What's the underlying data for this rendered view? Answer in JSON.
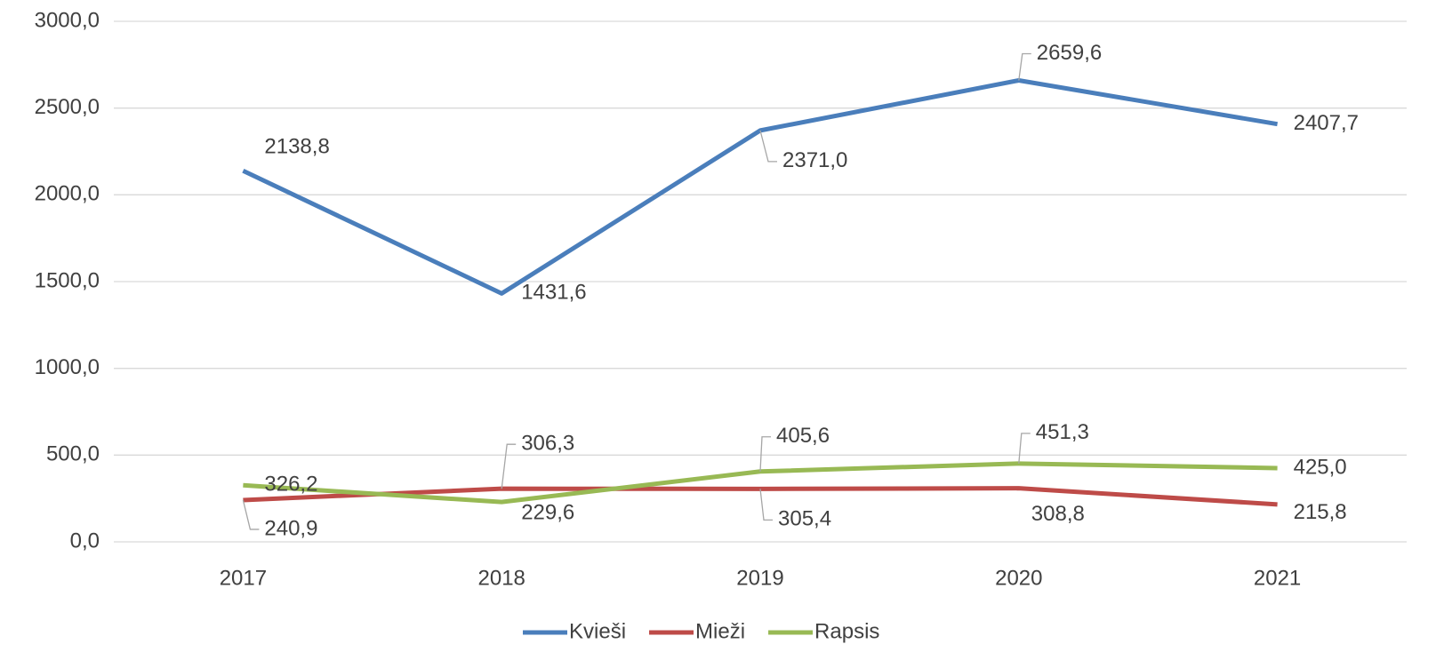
{
  "chart_data": {
    "type": "line",
    "categories": [
      "2017",
      "2018",
      "2019",
      "2020",
      "2021"
    ],
    "series": [
      {
        "name": "Kvieši",
        "color": "#4a7ebb",
        "values": [
          2138.8,
          1431.6,
          2371.0,
          2659.6,
          2407.7
        ],
        "value_labels": [
          "2138,8",
          "1431,6",
          "2371,0",
          "2659,6",
          "2407,7"
        ]
      },
      {
        "name": "Mieži",
        "color": "#be4b48",
        "values": [
          240.9,
          306.3,
          305.4,
          308.8,
          215.8
        ],
        "value_labels": [
          "240,9",
          "306,3",
          "305,4",
          "308,8",
          "215,8"
        ]
      },
      {
        "name": "Rapsis",
        "color": "#98b954",
        "values": [
          326.2,
          229.6,
          405.6,
          451.3,
          425.0
        ],
        "value_labels": [
          "326,2",
          "229,6",
          "405,6",
          "451,3",
          "425,0"
        ]
      }
    ],
    "ylim": [
      0,
      3000
    ],
    "yticks": [
      {
        "value": 0,
        "label": "0,0"
      },
      {
        "value": 500,
        "label": "500,0"
      },
      {
        "value": 1000,
        "label": "1000,0"
      },
      {
        "value": 1500,
        "label": "1500,0"
      },
      {
        "value": 2000,
        "label": "2000,0"
      },
      {
        "value": 2500,
        "label": "2500,0"
      },
      {
        "value": 3000,
        "label": "3000,0"
      }
    ],
    "grid": true,
    "legend": "bottom"
  }
}
